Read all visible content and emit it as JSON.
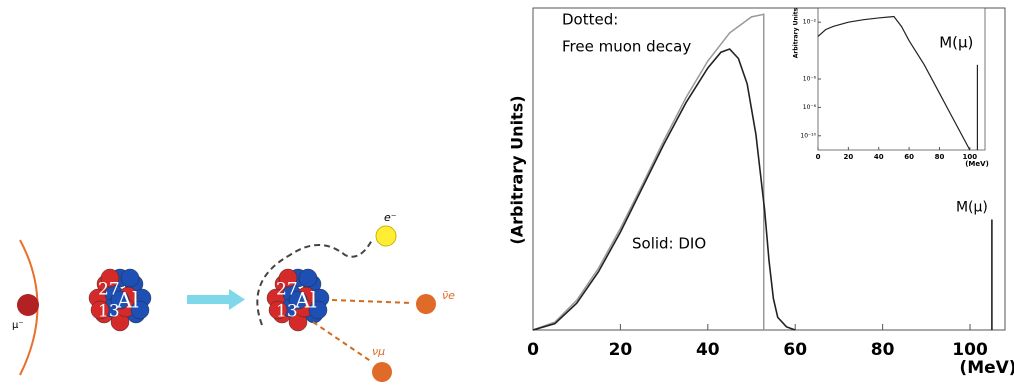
{
  "diagram": {
    "muon": "μ⁻",
    "nucleus_before": {
      "mass": "27",
      "atomic": "13",
      "symbol": "Al"
    },
    "nucleus_after": {
      "mass": "27",
      "atomic": "13",
      "symbol": "Al"
    },
    "electron": "e⁻",
    "antineutrino": "ν̄e",
    "neutrino": "νμ"
  },
  "chart_data": [
    {
      "type": "line",
      "y_label": "(Arbitrary Units)",
      "x_label": "(MeV)",
      "annotations": [
        "Dotted:",
        "Free muon decay",
        "Solid: DIO"
      ],
      "xlim": [
        0,
        108
      ],
      "xticks": [
        0,
        20,
        40,
        60,
        80,
        100
      ],
      "ylim": [
        0,
        1.02
      ],
      "series": [
        {
          "style": "dotted",
          "color": "#999999",
          "x": [
            0,
            5,
            10,
            15,
            20,
            25,
            30,
            35,
            40,
            45,
            50,
            52.8,
            52.8
          ],
          "values": [
            0,
            0.025,
            0.094,
            0.196,
            0.322,
            0.46,
            0.602,
            0.736,
            0.852,
            0.941,
            0.992,
            1,
            0
          ]
        },
        {
          "style": "solid",
          "color": "#222222",
          "x": [
            0,
            5,
            10,
            15,
            20,
            25,
            30,
            35,
            40,
            43,
            45,
            47,
            49,
            51,
            52,
            53,
            54,
            55,
            56,
            58,
            60
          ],
          "values": [
            0,
            0.02,
            0.085,
            0.185,
            0.31,
            0.45,
            0.59,
            0.72,
            0.83,
            0.88,
            0.89,
            0.86,
            0.78,
            0.62,
            0.5,
            0.38,
            0.22,
            0.1,
            0.04,
            0.01,
            0
          ]
        },
        {
          "name": "M(μ)",
          "style": "solid",
          "color": "#222222",
          "x": [
            105,
            105
          ],
          "values": [
            0,
            0.35
          ]
        }
      ]
    },
    {
      "type": "line",
      "y_label": "Arbitrary Units",
      "x_label": "(MeV)",
      "log_y": true,
      "xlim": [
        0,
        110
      ],
      "xticks": [
        0,
        20,
        40,
        60,
        80,
        100
      ],
      "ylim": [
        1e-11,
        0.1
      ],
      "yticks": [
        {
          "value": 0.01,
          "label": "10⁻²"
        },
        {
          "value": 1e-06,
          "label": "10⁻⁶"
        },
        {
          "value": 1e-08,
          "label": "10⁻⁸"
        },
        {
          "value": 1e-10,
          "label": "10⁻¹⁰"
        }
      ],
      "series": [
        {
          "style": "solid",
          "color": "#222222",
          "x": [
            0,
            5,
            10,
            20,
            30,
            40,
            50,
            55,
            60,
            70,
            80,
            90,
            100
          ],
          "values": [
            0.001,
            0.003,
            0.005,
            0.01,
            0.015,
            0.02,
            0.025,
            0.005,
            0.0005,
            1e-05,
            1e-07,
            1e-09,
            1e-11
          ]
        },
        {
          "name": "M(μ)",
          "style": "solid",
          "color": "#222222",
          "x": [
            105,
            105
          ],
          "values": [
            1e-11,
            1e-05
          ]
        }
      ]
    }
  ]
}
